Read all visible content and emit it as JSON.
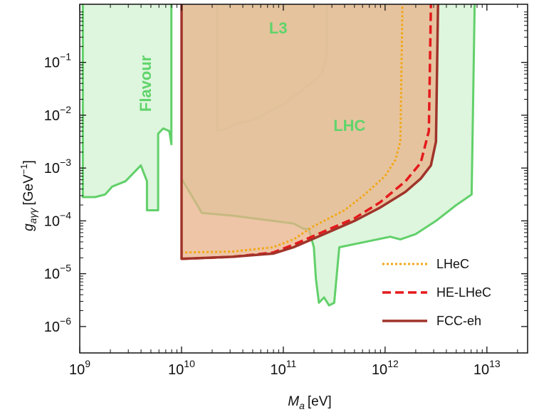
{
  "chart_data": {
    "type": "area",
    "xlabel_symbol": "M",
    "xlabel_sub": "a",
    "xlabel_unit": "[eV]",
    "ylabel_symbol": "g",
    "ylabel_sub": "aγγ",
    "ylabel_unit_pre": "[GeV",
    "ylabel_unit_exp": "−1",
    "ylabel_unit_post": "]",
    "x_log_range": [
      9,
      13.35
    ],
    "y_log_range": [
      -6.45,
      0.1
    ],
    "x_ticks": [
      {
        "base": "10",
        "exp": "9",
        "log": 9
      },
      {
        "base": "10",
        "exp": "10",
        "log": 10
      },
      {
        "base": "10",
        "exp": "11",
        "log": 11
      },
      {
        "base": "10",
        "exp": "12",
        "log": 12
      },
      {
        "base": "10",
        "exp": "13",
        "log": 13
      }
    ],
    "y_ticks": [
      {
        "base": "10",
        "exp": "−1",
        "log": -1
      },
      {
        "base": "10",
        "exp": "−2",
        "log": -2
      },
      {
        "base": "10",
        "exp": "−3",
        "log": -3
      },
      {
        "base": "10",
        "exp": "−4",
        "log": -4
      },
      {
        "base": "10",
        "exp": "−5",
        "log": -5
      },
      {
        "base": "10",
        "exp": "−6",
        "log": -6
      }
    ],
    "excluded_regions": [
      {
        "name": "Flavour",
        "label_at": [
          9.7,
          -1.4
        ],
        "label_rotate": true,
        "boundary": [
          [
            9.03,
            0.15
          ],
          [
            9.03,
            -3.55
          ],
          [
            9.15,
            -3.55
          ],
          [
            9.25,
            -3.5
          ],
          [
            9.32,
            -3.35
          ],
          [
            9.45,
            -3.25
          ],
          [
            9.55,
            -3.05
          ],
          [
            9.6,
            -2.95
          ],
          [
            9.66,
            -3.25
          ],
          [
            9.66,
            -3.8
          ],
          [
            9.77,
            -3.8
          ],
          [
            9.77,
            -2.35
          ],
          [
            9.82,
            -2.25
          ],
          [
            9.88,
            -2.3
          ],
          [
            9.9,
            -2.55
          ],
          [
            9.9,
            0.15
          ]
        ]
      },
      {
        "name": "L3",
        "label_at": [
          10.95,
          -0.45
        ],
        "boundary": [
          [
            10.35,
            0.15
          ],
          [
            10.35,
            -2.3
          ],
          [
            10.45,
            -2.25
          ],
          [
            10.55,
            -2.15
          ],
          [
            10.7,
            -2.1
          ],
          [
            10.8,
            -2.0
          ],
          [
            10.9,
            -1.9
          ],
          [
            11.0,
            -1.8
          ],
          [
            11.1,
            -1.65
          ],
          [
            11.2,
            -1.5
          ],
          [
            11.3,
            -1.35
          ],
          [
            11.38,
            -1.2
          ],
          [
            11.42,
            -0.95
          ],
          [
            11.43,
            -0.7
          ],
          [
            11.43,
            0.15
          ]
        ]
      },
      {
        "name": "LHC",
        "label_at": [
          11.65,
          -2.3
        ],
        "boundary": [
          [
            10.0,
            0.15
          ],
          [
            10.0,
            -3.2
          ],
          [
            10.2,
            -3.85
          ],
          [
            10.5,
            -3.9
          ],
          [
            10.9,
            -4.0
          ],
          [
            11.1,
            -4.05
          ],
          [
            11.2,
            -4.15
          ],
          [
            11.25,
            -4.15
          ],
          [
            11.3,
            -4.5
          ],
          [
            11.32,
            -5.1
          ],
          [
            11.35,
            -5.55
          ],
          [
            11.4,
            -5.45
          ],
          [
            11.45,
            -5.6
          ],
          [
            11.5,
            -5.55
          ],
          [
            11.55,
            -4.5
          ],
          [
            12.05,
            -4.3
          ],
          [
            12.15,
            -4.35
          ],
          [
            12.3,
            -4.25
          ],
          [
            12.5,
            -4.0
          ],
          [
            12.7,
            -3.7
          ],
          [
            12.85,
            -3.5
          ],
          [
            12.88,
            0.15
          ]
        ]
      }
    ],
    "series": [
      {
        "name": "LHeC",
        "color": "#f0a818",
        "dash": "dotted",
        "x": [
          10.0,
          10.0,
          10.5,
          10.9,
          11.1,
          11.3,
          11.6,
          11.8,
          12.0,
          12.1,
          12.15,
          12.17
        ],
        "y": [
          0.1,
          -4.6,
          -4.58,
          -4.5,
          -4.35,
          -4.1,
          -3.8,
          -3.5,
          -3.15,
          -2.85,
          -2.5,
          0.1
        ]
      },
      {
        "name": "HE-LHeC",
        "color": "#e41a1c",
        "dash": "dashed",
        "x": [
          10.0,
          10.5,
          10.9,
          11.1,
          11.4,
          11.7,
          11.95,
          12.2,
          12.35,
          12.43,
          12.45
        ],
        "y": [
          -4.72,
          -4.68,
          -4.6,
          -4.45,
          -4.2,
          -3.95,
          -3.65,
          -3.25,
          -2.9,
          -2.3,
          0.1
        ]
      },
      {
        "name": "FCC-eh",
        "color": "#a0342a",
        "dash": "solid",
        "x": [
          10.0,
          10.0,
          10.5,
          10.9,
          11.1,
          11.4,
          11.7,
          11.95,
          12.2,
          12.35,
          12.45,
          12.5,
          12.52
        ],
        "y": [
          0.1,
          -4.72,
          -4.68,
          -4.62,
          -4.5,
          -4.25,
          -4.0,
          -3.75,
          -3.45,
          -3.2,
          -2.95,
          -2.5,
          0.1
        ]
      }
    ],
    "fcc_fill_color": "#e8b28a",
    "fcc_fill_boundary": [
      [
        10.0,
        0.15
      ],
      [
        10.0,
        -4.72
      ],
      [
        10.5,
        -4.68
      ],
      [
        10.9,
        -4.62
      ],
      [
        11.1,
        -4.5
      ],
      [
        11.4,
        -4.25
      ],
      [
        11.7,
        -4.0
      ],
      [
        11.95,
        -3.75
      ],
      [
        12.2,
        -3.45
      ],
      [
        12.35,
        -3.2
      ],
      [
        12.45,
        -2.95
      ],
      [
        12.5,
        -2.5
      ],
      [
        12.52,
        0.15
      ]
    ],
    "region_fill_color": "#d7f4d7",
    "region_line_color": "#62d06a",
    "legend_placement": "bottom-right",
    "grid": false
  }
}
